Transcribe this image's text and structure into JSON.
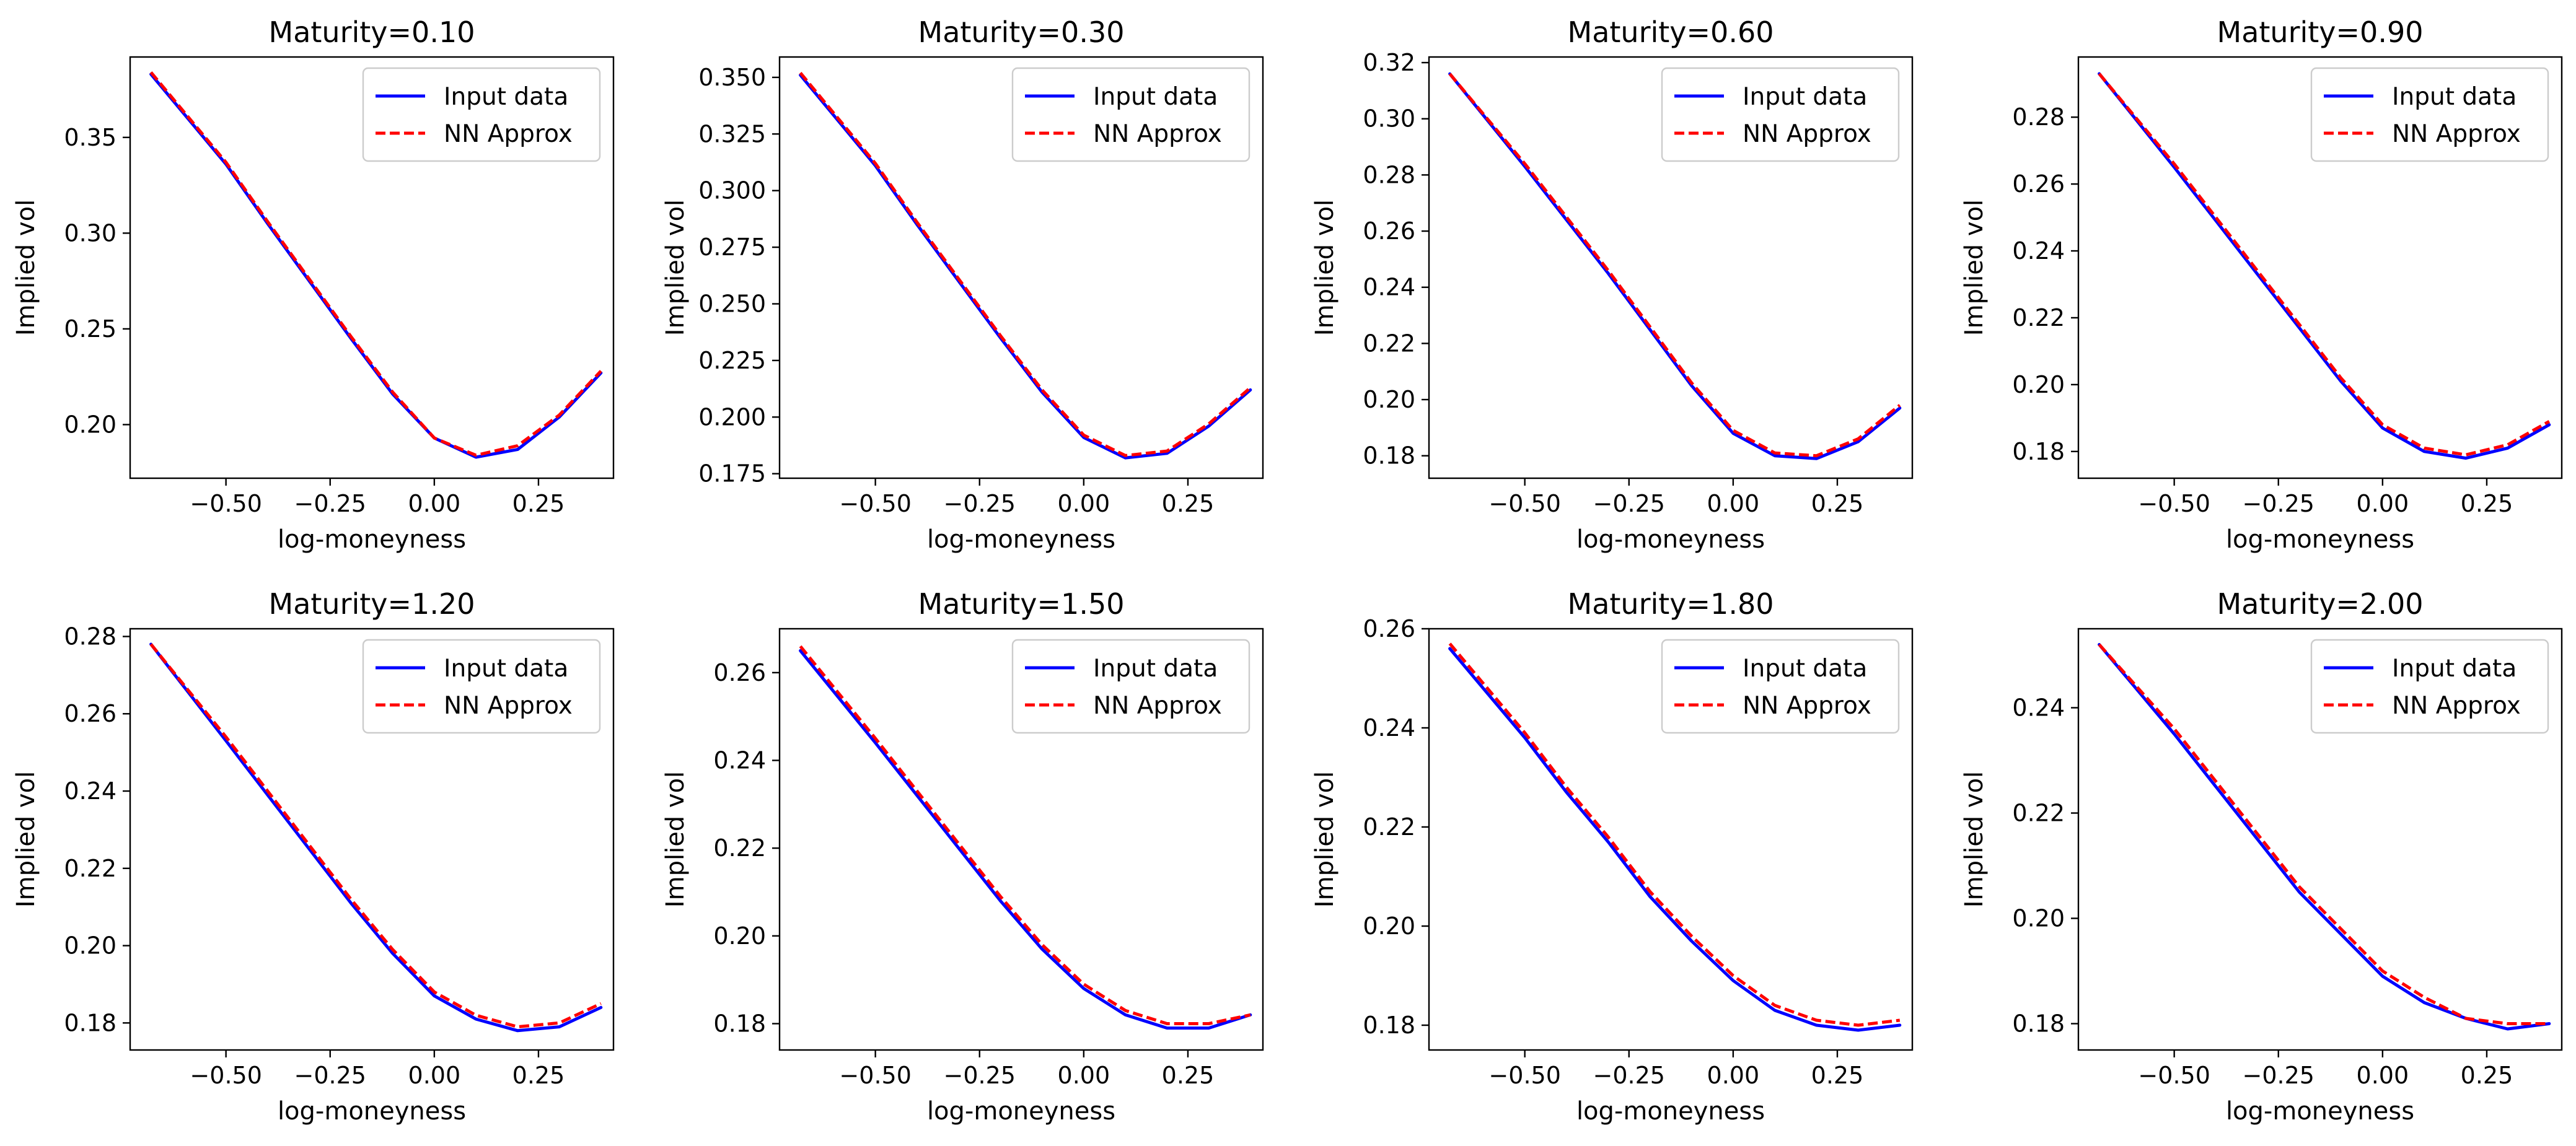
{
  "chart_data": [
    {
      "type": "line",
      "title": "Maturity=0.10",
      "xlabel": "log-moneyness",
      "ylabel": "Implied vol",
      "xlim": [
        -0.73,
        0.43
      ],
      "ylim": [
        0.172,
        0.392
      ],
      "xticks": [
        -0.5,
        -0.25,
        0.0,
        0.25
      ],
      "xtick_labels": [
        "−0.50",
        "−0.25",
        "0.00",
        "0.25"
      ],
      "yticks": [
        0.2,
        0.25,
        0.3,
        0.35
      ],
      "ytick_labels": [
        "0.20",
        "0.25",
        "0.30",
        "0.35"
      ],
      "legend_position": "top-right",
      "x": [
        -0.68,
        -0.5,
        -0.4,
        -0.3,
        -0.2,
        -0.1,
        0.0,
        0.1,
        0.2,
        0.3,
        0.4
      ],
      "series": [
        {
          "name": "Input data",
          "color": "#0000ff",
          "style": "solid",
          "values": [
            0.383,
            0.336,
            0.305,
            0.275,
            0.245,
            0.216,
            0.193,
            0.183,
            0.187,
            0.204,
            0.227
          ]
        },
        {
          "name": "NN Approx",
          "color": "#ff0000",
          "style": "dashed",
          "values": [
            0.384,
            0.337,
            0.306,
            0.276,
            0.246,
            0.217,
            0.193,
            0.184,
            0.189,
            0.205,
            0.228
          ]
        }
      ]
    },
    {
      "type": "line",
      "title": "Maturity=0.30",
      "xlabel": "log-moneyness",
      "ylabel": "Implied vol",
      "xlim": [
        -0.73,
        0.43
      ],
      "ylim": [
        0.173,
        0.359
      ],
      "xticks": [
        -0.5,
        -0.25,
        0.0,
        0.25
      ],
      "xtick_labels": [
        "−0.50",
        "−0.25",
        "0.00",
        "0.25"
      ],
      "yticks": [
        0.175,
        0.2,
        0.225,
        0.25,
        0.275,
        0.3,
        0.325,
        0.35
      ],
      "ytick_labels": [
        "0.175",
        "0.200",
        "0.225",
        "0.250",
        "0.275",
        "0.300",
        "0.325",
        "0.350"
      ],
      "legend_position": "top-right",
      "x": [
        -0.68,
        -0.5,
        -0.4,
        -0.3,
        -0.2,
        -0.1,
        0.0,
        0.1,
        0.2,
        0.3,
        0.4
      ],
      "series": [
        {
          "name": "Input data",
          "color": "#0000ff",
          "style": "solid",
          "values": [
            0.351,
            0.311,
            0.285,
            0.26,
            0.235,
            0.211,
            0.191,
            0.182,
            0.184,
            0.196,
            0.212
          ]
        },
        {
          "name": "NN Approx",
          "color": "#ff0000",
          "style": "dashed",
          "values": [
            0.352,
            0.312,
            0.286,
            0.261,
            0.236,
            0.212,
            0.192,
            0.183,
            0.185,
            0.197,
            0.213
          ]
        }
      ]
    },
    {
      "type": "line",
      "title": "Maturity=0.60",
      "xlabel": "log-moneyness",
      "ylabel": "Implied vol",
      "xlim": [
        -0.73,
        0.43
      ],
      "ylim": [
        0.172,
        0.322
      ],
      "xticks": [
        -0.5,
        -0.25,
        0.0,
        0.25
      ],
      "xtick_labels": [
        "−0.50",
        "−0.25",
        "0.00",
        "0.25"
      ],
      "yticks": [
        0.18,
        0.2,
        0.22,
        0.24,
        0.26,
        0.28,
        0.3,
        0.32
      ],
      "ytick_labels": [
        "0.18",
        "0.20",
        "0.22",
        "0.24",
        "0.26",
        "0.28",
        "0.30",
        "0.32"
      ],
      "legend_position": "top-right",
      "x": [
        -0.68,
        -0.5,
        -0.4,
        -0.3,
        -0.2,
        -0.1,
        0.0,
        0.1,
        0.2,
        0.3,
        0.4
      ],
      "series": [
        {
          "name": "Input data",
          "color": "#0000ff",
          "style": "solid",
          "values": [
            0.316,
            0.283,
            0.264,
            0.245,
            0.225,
            0.205,
            0.188,
            0.18,
            0.179,
            0.185,
            0.197
          ]
        },
        {
          "name": "NN Approx",
          "color": "#ff0000",
          "style": "dashed",
          "values": [
            0.316,
            0.284,
            0.265,
            0.246,
            0.226,
            0.206,
            0.189,
            0.181,
            0.18,
            0.186,
            0.198
          ]
        }
      ]
    },
    {
      "type": "line",
      "title": "Maturity=0.90",
      "xlabel": "log-moneyness",
      "ylabel": "Implied vol",
      "xlim": [
        -0.73,
        0.43
      ],
      "ylim": [
        0.172,
        0.298
      ],
      "xticks": [
        -0.5,
        -0.25,
        0.0,
        0.25
      ],
      "xtick_labels": [
        "−0.50",
        "−0.25",
        "0.00",
        "0.25"
      ],
      "yticks": [
        0.18,
        0.2,
        0.22,
        0.24,
        0.26,
        0.28
      ],
      "ytick_labels": [
        "0.18",
        "0.20",
        "0.22",
        "0.24",
        "0.26",
        "0.28"
      ],
      "legend_position": "top-right",
      "x": [
        -0.68,
        -0.5,
        -0.4,
        -0.3,
        -0.2,
        -0.1,
        0.0,
        0.1,
        0.2,
        0.3,
        0.4
      ],
      "series": [
        {
          "name": "Input data",
          "color": "#0000ff",
          "style": "solid",
          "values": [
            0.293,
            0.265,
            0.249,
            0.233,
            0.217,
            0.201,
            0.187,
            0.18,
            0.178,
            0.181,
            0.188
          ]
        },
        {
          "name": "NN Approx",
          "color": "#ff0000",
          "style": "dashed",
          "values": [
            0.293,
            0.266,
            0.25,
            0.234,
            0.218,
            0.202,
            0.188,
            0.181,
            0.179,
            0.182,
            0.189
          ]
        }
      ]
    },
    {
      "type": "line",
      "title": "Maturity=1.20",
      "xlabel": "log-moneyness",
      "ylabel": "Implied vol",
      "xlim": [
        -0.73,
        0.43
      ],
      "ylim": [
        0.173,
        0.282
      ],
      "xticks": [
        -0.5,
        -0.25,
        0.0,
        0.25
      ],
      "xtick_labels": [
        "−0.50",
        "−0.25",
        "0.00",
        "0.25"
      ],
      "yticks": [
        0.18,
        0.2,
        0.22,
        0.24,
        0.26,
        0.28
      ],
      "ytick_labels": [
        "0.18",
        "0.20",
        "0.22",
        "0.24",
        "0.26",
        "0.28"
      ],
      "legend_position": "top-right",
      "x": [
        -0.68,
        -0.5,
        -0.4,
        -0.3,
        -0.2,
        -0.1,
        0.0,
        0.1,
        0.2,
        0.3,
        0.4
      ],
      "series": [
        {
          "name": "Input data",
          "color": "#0000ff",
          "style": "solid",
          "values": [
            0.278,
            0.253,
            0.239,
            0.225,
            0.211,
            0.198,
            0.187,
            0.181,
            0.178,
            0.179,
            0.184
          ]
        },
        {
          "name": "NN Approx",
          "color": "#ff0000",
          "style": "dashed",
          "values": [
            0.278,
            0.254,
            0.24,
            0.226,
            0.212,
            0.199,
            0.188,
            0.182,
            0.179,
            0.18,
            0.185
          ]
        }
      ]
    },
    {
      "type": "line",
      "title": "Maturity=1.50",
      "xlabel": "log-moneyness",
      "ylabel": "Implied vol",
      "xlim": [
        -0.73,
        0.43
      ],
      "ylim": [
        0.174,
        0.27
      ],
      "xticks": [
        -0.5,
        -0.25,
        0.0,
        0.25
      ],
      "xtick_labels": [
        "−0.50",
        "−0.25",
        "0.00",
        "0.25"
      ],
      "yticks": [
        0.18,
        0.2,
        0.22,
        0.24,
        0.26
      ],
      "ytick_labels": [
        "0.18",
        "0.20",
        "0.22",
        "0.24",
        "0.26"
      ],
      "legend_position": "top-right",
      "x": [
        -0.68,
        -0.5,
        -0.4,
        -0.3,
        -0.2,
        -0.1,
        0.0,
        0.1,
        0.2,
        0.3,
        0.4
      ],
      "series": [
        {
          "name": "Input data",
          "color": "#0000ff",
          "style": "solid",
          "values": [
            0.265,
            0.244,
            0.232,
            0.22,
            0.208,
            0.197,
            0.188,
            0.182,
            0.179,
            0.179,
            0.182
          ]
        },
        {
          "name": "NN Approx",
          "color": "#ff0000",
          "style": "dashed",
          "values": [
            0.266,
            0.245,
            0.233,
            0.221,
            0.209,
            0.198,
            0.189,
            0.183,
            0.18,
            0.18,
            0.182
          ]
        }
      ]
    },
    {
      "type": "line",
      "title": "Maturity=1.80",
      "xlabel": "log-moneyness",
      "ylabel": "Implied vol",
      "xlim": [
        -0.73,
        0.43
      ],
      "ylim": [
        0.175,
        0.26
      ],
      "xticks": [
        -0.5,
        -0.25,
        0.0,
        0.25
      ],
      "xtick_labels": [
        "−0.50",
        "−0.25",
        "0.00",
        "0.25"
      ],
      "yticks": [
        0.18,
        0.2,
        0.22,
        0.24,
        0.26
      ],
      "ytick_labels": [
        "0.18",
        "0.20",
        "0.22",
        "0.24",
        "0.26"
      ],
      "legend_position": "top-right",
      "x": [
        -0.68,
        -0.5,
        -0.4,
        -0.3,
        -0.2,
        -0.1,
        0.0,
        0.1,
        0.2,
        0.3,
        0.4
      ],
      "series": [
        {
          "name": "Input data",
          "color": "#0000ff",
          "style": "solid",
          "values": [
            0.256,
            0.238,
            0.227,
            0.217,
            0.206,
            0.197,
            0.189,
            0.183,
            0.18,
            0.179,
            0.18
          ]
        },
        {
          "name": "NN Approx",
          "color": "#ff0000",
          "style": "dashed",
          "values": [
            0.257,
            0.239,
            0.228,
            0.218,
            0.207,
            0.198,
            0.19,
            0.184,
            0.181,
            0.18,
            0.181
          ]
        }
      ]
    },
    {
      "type": "line",
      "title": "Maturity=2.00",
      "xlabel": "log-moneyness",
      "ylabel": "Implied vol",
      "xlim": [
        -0.73,
        0.43
      ],
      "ylim": [
        0.175,
        0.255
      ],
      "xticks": [
        -0.5,
        -0.25,
        0.0,
        0.25
      ],
      "xtick_labels": [
        "−0.50",
        "−0.25",
        "0.00",
        "0.25"
      ],
      "yticks": [
        0.18,
        0.2,
        0.22,
        0.24
      ],
      "ytick_labels": [
        "0.18",
        "0.20",
        "0.22",
        "0.24"
      ],
      "legend_position": "top-right",
      "x": [
        -0.68,
        -0.5,
        -0.4,
        -0.3,
        -0.2,
        -0.1,
        0.0,
        0.1,
        0.2,
        0.3,
        0.4
      ],
      "series": [
        {
          "name": "Input data",
          "color": "#0000ff",
          "style": "solid",
          "values": [
            0.252,
            0.235,
            0.225,
            0.215,
            0.205,
            0.197,
            0.189,
            0.184,
            0.181,
            0.179,
            0.18
          ]
        },
        {
          "name": "NN Approx",
          "color": "#ff0000",
          "style": "dashed",
          "values": [
            0.252,
            0.236,
            0.226,
            0.216,
            0.206,
            0.198,
            0.19,
            0.185,
            0.181,
            0.18,
            0.18
          ]
        }
      ]
    }
  ]
}
